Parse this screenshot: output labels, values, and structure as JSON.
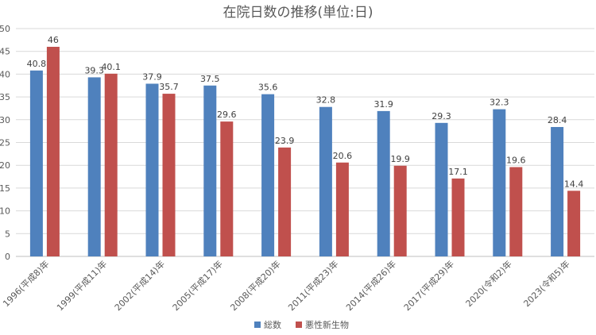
{
  "chart_data": {
    "type": "bar",
    "title": "在院日数の推移(単位:日)",
    "categories": [
      "1996(平成8)年",
      "1999(平成11)年",
      "2002(平成14)年",
      "2005(平成17)年",
      "2008(平成20)年",
      "2011(平成23)年",
      "2014(平成26)年",
      "2017(平成29)年",
      "2020(令和2)年",
      "2023(令和5)年"
    ],
    "series": [
      {
        "name": "総数",
        "color": "#4f81bd",
        "values": [
          40.8,
          39.3,
          37.9,
          37.5,
          35.6,
          32.8,
          31.9,
          29.3,
          32.3,
          28.4
        ],
        "labels": [
          "40.8",
          "39.3",
          "37.9",
          "37.5",
          "35.6",
          "32.8",
          "31.9",
          "29.3",
          "32.3",
          "28.4"
        ]
      },
      {
        "name": "悪性新生物",
        "color": "#c0504d",
        "values": [
          46,
          40.1,
          35.7,
          29.6,
          23.9,
          20.6,
          19.9,
          17.1,
          19.6,
          14.4
        ],
        "labels": [
          "46",
          "40.1",
          "35.7",
          "29.6",
          "23.9",
          "20.6",
          "19.9",
          "17.1",
          "19.6",
          "14.4"
        ]
      }
    ],
    "ylim": [
      0,
      50
    ],
    "yticks": [
      0,
      5,
      10,
      15,
      20,
      25,
      30,
      35,
      40,
      45,
      50
    ],
    "grid": true,
    "legend_position": "bottom"
  }
}
